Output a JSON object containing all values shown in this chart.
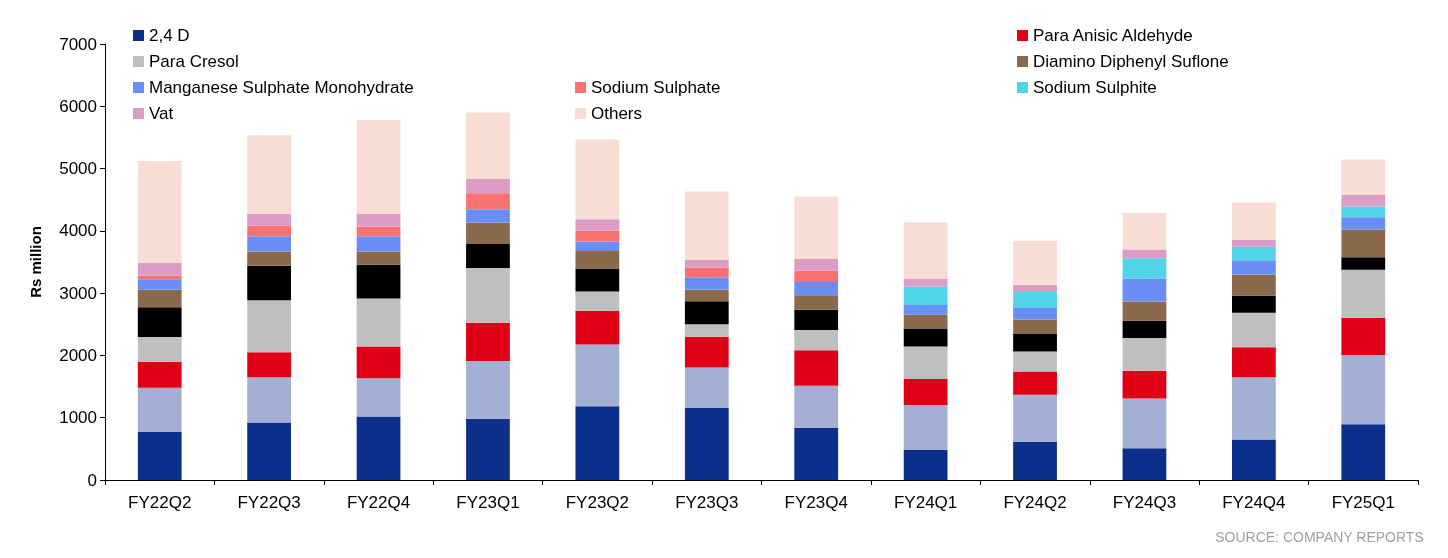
{
  "chart_data": {
    "type": "bar",
    "stacked": true,
    "ylabel": "Rs million",
    "categories": [
      "FY22Q2",
      "FY22Q3",
      "FY22Q4",
      "FY23Q1",
      "FY23Q2",
      "FY23Q3",
      "FY23Q4",
      "FY24Q1",
      "FY24Q2",
      "FY24Q3",
      "FY24Q4",
      "FY25Q1"
    ],
    "series": [
      {
        "name": "2,4 D",
        "color": "#0d2f8c",
        "values": [
          770,
          925,
          1020,
          985,
          1185,
          1155,
          835,
          480,
          615,
          510,
          650,
          895
        ]
      },
      {
        "color": "#a3b0d4",
        "values": [
          710,
          725,
          615,
          925,
          990,
          650,
          680,
          725,
          755,
          800,
          1000,
          1110
        ]
      },
      {
        "name": "Para Anisic Aldehyde",
        "color": "#e00016",
        "values": [
          415,
          400,
          510,
          615,
          540,
          495,
          570,
          415,
          370,
          445,
          480,
          600
        ]
      },
      {
        "name": "Para Cresol",
        "color": "#bfbfbf",
        "values": [
          400,
          835,
          770,
          880,
          310,
          200,
          325,
          525,
          325,
          525,
          555,
          770
        ]
      },
      {
        "color": "#000000",
        "values": [
          480,
          555,
          540,
          385,
          370,
          370,
          325,
          280,
          280,
          275,
          275,
          200
        ]
      },
      {
        "name": "Diamino Diphenyl Suflone",
        "color": "#8a6a4a",
        "values": [
          280,
          230,
          215,
          340,
          280,
          185,
          230,
          230,
          230,
          310,
          340,
          445
        ]
      },
      {
        "name": "Manganese Sulphate Monohydrate",
        "color": "#6a8ef5",
        "values": [
          170,
          245,
          245,
          215,
          155,
          200,
          215,
          155,
          185,
          370,
          230,
          200
        ]
      },
      {
        "name": "Sodium Sulphate",
        "color": "#f87272",
        "values": [
          60,
          170,
          155,
          260,
          170,
          155,
          185,
          0,
          0,
          0,
          0,
          0
        ]
      },
      {
        "name": "Sodium Sulphite",
        "color": "#52d4e8",
        "values": [
          0,
          0,
          0,
          0,
          0,
          0,
          0,
          295,
          260,
          325,
          215,
          170
        ]
      },
      {
        "name": "Vat",
        "color": "#dc9cc6",
        "values": [
          200,
          185,
          200,
          230,
          185,
          125,
          185,
          125,
          110,
          140,
          110,
          185
        ]
      },
      {
        "name": "Others",
        "color": "#f8ddd5",
        "values": [
          1635,
          1265,
          1510,
          1065,
          1280,
          1095,
          1000,
          910,
          710,
          585,
          600,
          570
        ]
      }
    ],
    "ylim": [
      0,
      7000
    ],
    "yticks": [
      0,
      1000,
      2000,
      3000,
      4000,
      5000,
      6000,
      7000
    ],
    "grid": false,
    "legend": "top",
    "annotations": [
      "SOURCE: COMPANY REPORTS"
    ]
  }
}
